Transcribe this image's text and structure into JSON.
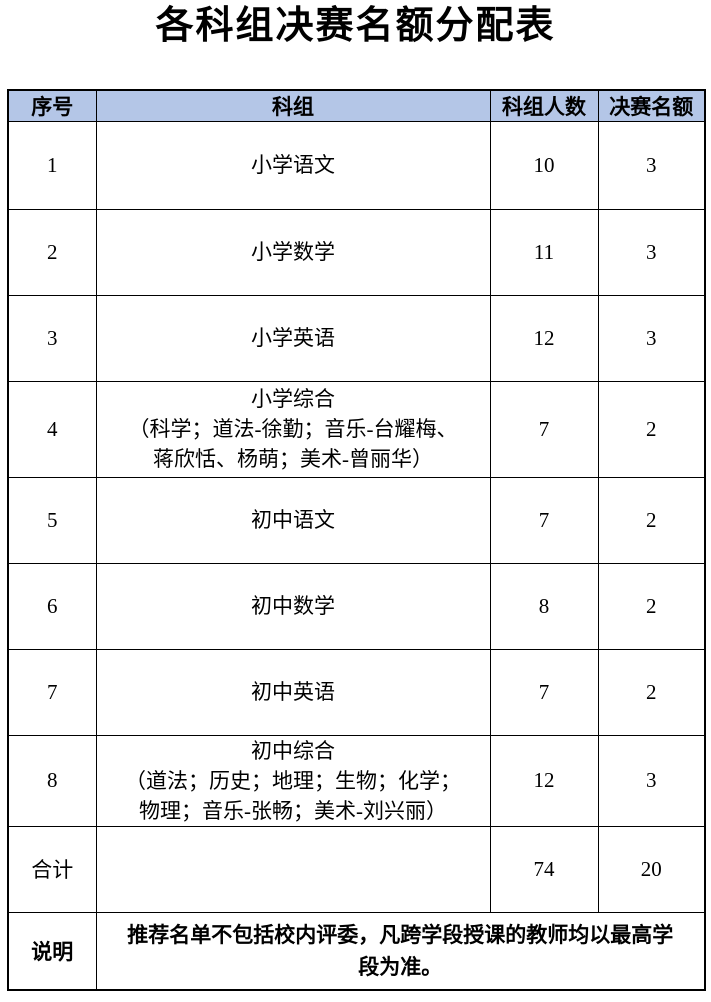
{
  "page": {
    "title": "各科组决赛名额分配表"
  },
  "colors": {
    "header_bg": "#b4c6e7",
    "border": "#000000",
    "text": "#000000",
    "page_bg": "#ffffff"
  },
  "table": {
    "columns": {
      "no": "序号",
      "group": "科组",
      "members": "科组人数",
      "quota": "决赛名额"
    },
    "rows": [
      {
        "no": "1",
        "group": "小学语文",
        "members": "10",
        "quota": "3"
      },
      {
        "no": "2",
        "group": "小学数学",
        "members": "11",
        "quota": "3"
      },
      {
        "no": "3",
        "group": "小学英语",
        "members": "12",
        "quota": "3"
      },
      {
        "no": "4",
        "group": "小学综合\n（科学；道法-徐勤；音乐-台耀梅、\n蒋欣恬、杨萌；美术-曾丽华）",
        "members": "7",
        "quota": "2"
      },
      {
        "no": "5",
        "group": "初中语文",
        "members": "7",
        "quota": "2"
      },
      {
        "no": "6",
        "group": "初中数学",
        "members": "8",
        "quota": "2"
      },
      {
        "no": "7",
        "group": "初中英语",
        "members": "7",
        "quota": "2"
      },
      {
        "no": "8",
        "group": "初中综合\n（道法；历史；地理；生物；化学；\n物理；音乐-张畅；美术-刘兴丽）",
        "members": "12",
        "quota": "3"
      }
    ],
    "total_row": {
      "label": "合计",
      "group": "",
      "members": "74",
      "quota": "20"
    },
    "note_row": {
      "label": "说明",
      "text": "推荐名单不包括校内评委，凡跨学段授课的教师均以最高学段为准。"
    }
  }
}
